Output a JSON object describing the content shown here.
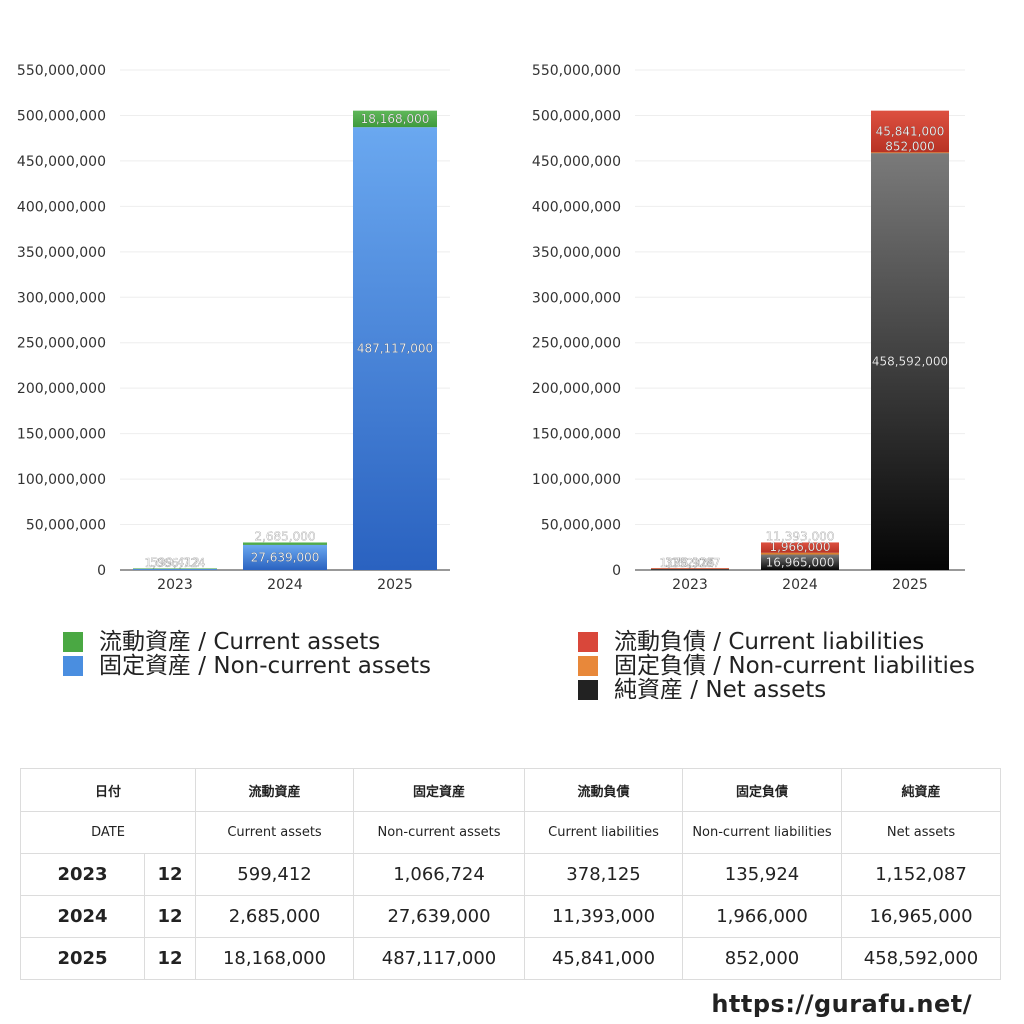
{
  "chart_data": [
    {
      "type": "bar",
      "stacked": true,
      "categories": [
        "2023",
        "2024",
        "2025"
      ],
      "series": [
        {
          "name": "固定資産 / Non-current assets",
          "values": [
            1066724,
            27639000,
            487117000
          ],
          "color_top": "#6aa8f0",
          "color_bottom": "#2a62c0"
        },
        {
          "name": "流動資産 / Current assets",
          "values": [
            599412,
            2685000,
            18168000
          ],
          "color_top": "#5fb85a",
          "color_bottom": "#3f9a3c"
        }
      ],
      "ylim": [
        0,
        550000000
      ],
      "yticks": [
        "0",
        "50,000,000",
        "100,000,000",
        "150,000,000",
        "200,000,000",
        "250,000,000",
        "300,000,000",
        "350,000,000",
        "400,000,000",
        "450,000,000",
        "500,000,000",
        "550,000,000"
      ],
      "grid": true,
      "legend_position": "bottom"
    },
    {
      "type": "bar",
      "stacked": true,
      "categories": [
        "2023",
        "2024",
        "2025"
      ],
      "series": [
        {
          "name": "純資産 / Net assets",
          "values": [
            1152087,
            16965000,
            458592000
          ],
          "color_top": "#7a7a7a",
          "color_bottom": "#050505"
        },
        {
          "name": "固定負債 / Non-current liabilities",
          "values": [
            135924,
            1966000,
            852000
          ],
          "color_top": "#e8903a",
          "color_bottom": "#c86a1c"
        },
        {
          "name": "流動負債 / Current liabilities",
          "values": [
            378125,
            11393000,
            45841000
          ],
          "color_top": "#dd5040",
          "color_bottom": "#b83224"
        }
      ],
      "ylim": [
        0,
        550000000
      ],
      "yticks": [
        "0",
        "50,000,000",
        "100,000,000",
        "150,000,000",
        "200,000,000",
        "250,000,000",
        "300,000,000",
        "350,000,000",
        "400,000,000",
        "450,000,000",
        "500,000,000",
        "550,000,000"
      ],
      "grid": true,
      "legend_position": "bottom"
    }
  ],
  "legend_left": [
    {
      "label": "流動資産 / Current assets",
      "color": "#4aa843"
    },
    {
      "label": "固定資産 / Non-current assets",
      "color": "#4a8ee0"
    }
  ],
  "legend_right": [
    {
      "label": "流動負債 / Current liabilities",
      "color": "#d9473a"
    },
    {
      "label": "固定負債 / Non-current liabilities",
      "color": "#e8883a"
    },
    {
      "label": "純資産 / Net assets",
      "color": "#222222"
    }
  ],
  "table": {
    "header_jp": [
      "日付",
      "流動資産",
      "固定資産",
      "流動負債",
      "固定負債",
      "純資産"
    ],
    "header_en": [
      "DATE",
      "Current assets",
      "Non-current assets",
      "Current liabilities",
      "Non-current liabilities",
      "Net assets"
    ],
    "rows": [
      {
        "year": "2023",
        "month": "12",
        "values": [
          "599,412",
          "1,066,724",
          "378,125",
          "135,924",
          "1,152,087"
        ]
      },
      {
        "year": "2024",
        "month": "12",
        "values": [
          "2,685,000",
          "27,639,000",
          "11,393,000",
          "1,966,000",
          "16,965,000"
        ]
      },
      {
        "year": "2025",
        "month": "12",
        "values": [
          "18,168,000",
          "487,117,000",
          "45,841,000",
          "852,000",
          "458,592,000"
        ]
      }
    ]
  },
  "footer_url": "https://gurafu.net/"
}
